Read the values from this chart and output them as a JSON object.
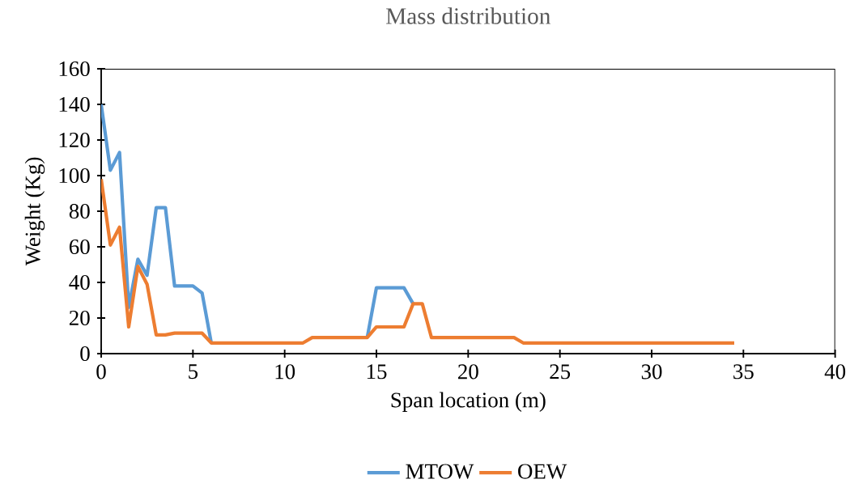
{
  "chart_data": {
    "type": "line",
    "title": "Mass distribution",
    "xlabel": "Span location (m)",
    "ylabel": "Weight (Kg)",
    "x": [
      0,
      0.5,
      1,
      1.5,
      2,
      2.5,
      3,
      3.5,
      4,
      4.5,
      5,
      5.5,
      6,
      6.5,
      7,
      7.5,
      8,
      8.5,
      9,
      9.5,
      10,
      10.5,
      11,
      11.5,
      12,
      12.5,
      13,
      13.5,
      14,
      14.5,
      15,
      15.5,
      16,
      16.5,
      17,
      17.5,
      18,
      18.5,
      19,
      19.5,
      20,
      20.5,
      21,
      21.5,
      22,
      22.5,
      23,
      23.5,
      24,
      24.5,
      25,
      25.5,
      26,
      26.5,
      27,
      27.5,
      28,
      28.5,
      29,
      29.5,
      30,
      30.5,
      31,
      31.5,
      32,
      32.5,
      33,
      33.5,
      34,
      34.5
    ],
    "series": [
      {
        "name": "MTOW",
        "color": "#5b9bd5",
        "values": [
          140,
          103,
          113,
          26,
          53,
          44,
          82,
          82,
          38,
          38,
          38,
          34,
          6,
          null,
          null,
          null,
          null,
          null,
          null,
          null,
          null,
          null,
          null,
          null,
          null,
          null,
          null,
          null,
          null,
          9,
          37,
          37,
          37,
          37,
          28,
          null,
          null,
          null,
          null,
          null,
          null,
          null,
          null,
          null,
          null,
          null,
          null,
          null,
          null,
          null,
          null,
          null,
          null,
          null,
          null,
          null,
          null,
          null,
          null,
          null,
          null,
          null,
          null,
          null,
          null,
          null,
          null,
          null,
          null,
          null
        ]
      },
      {
        "name": "OEW",
        "color": "#ed7d31",
        "values": [
          98,
          61,
          71,
          15,
          49,
          39,
          10.5,
          10.5,
          11.5,
          11.5,
          11.5,
          11.5,
          6,
          6,
          6,
          6,
          6,
          6,
          6,
          6,
          6,
          6,
          6,
          9,
          9,
          9,
          9,
          9,
          9,
          9,
          15,
          15,
          15,
          15,
          28,
          28,
          9,
          9,
          9,
          9,
          9,
          9,
          9,
          9,
          9,
          9,
          6,
          6,
          6,
          6,
          6,
          6,
          6,
          6,
          6,
          6,
          6,
          6,
          6,
          6,
          6,
          6,
          6,
          6,
          6,
          6,
          6,
          6,
          6,
          6
        ]
      }
    ],
    "xlim": [
      0,
      40
    ],
    "xticks": [
      0,
      5,
      10,
      15,
      20,
      25,
      30,
      35,
      40
    ],
    "ylim": [
      0,
      160
    ],
    "yticks": [
      0,
      20,
      40,
      60,
      80,
      100,
      120,
      140,
      160
    ],
    "grid": false,
    "legend": "bottom",
    "marker": "none",
    "line_style": "solid"
  }
}
